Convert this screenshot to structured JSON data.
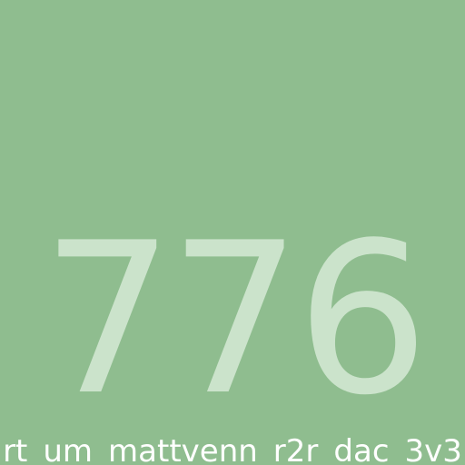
{
  "tile": {
    "number": "776",
    "caption": "rt_um_mattvenn_r2r_dac_3v3",
    "background_color": "#8fbd8f",
    "number_color": "#cbe3cb",
    "caption_color": "#ffffff"
  }
}
